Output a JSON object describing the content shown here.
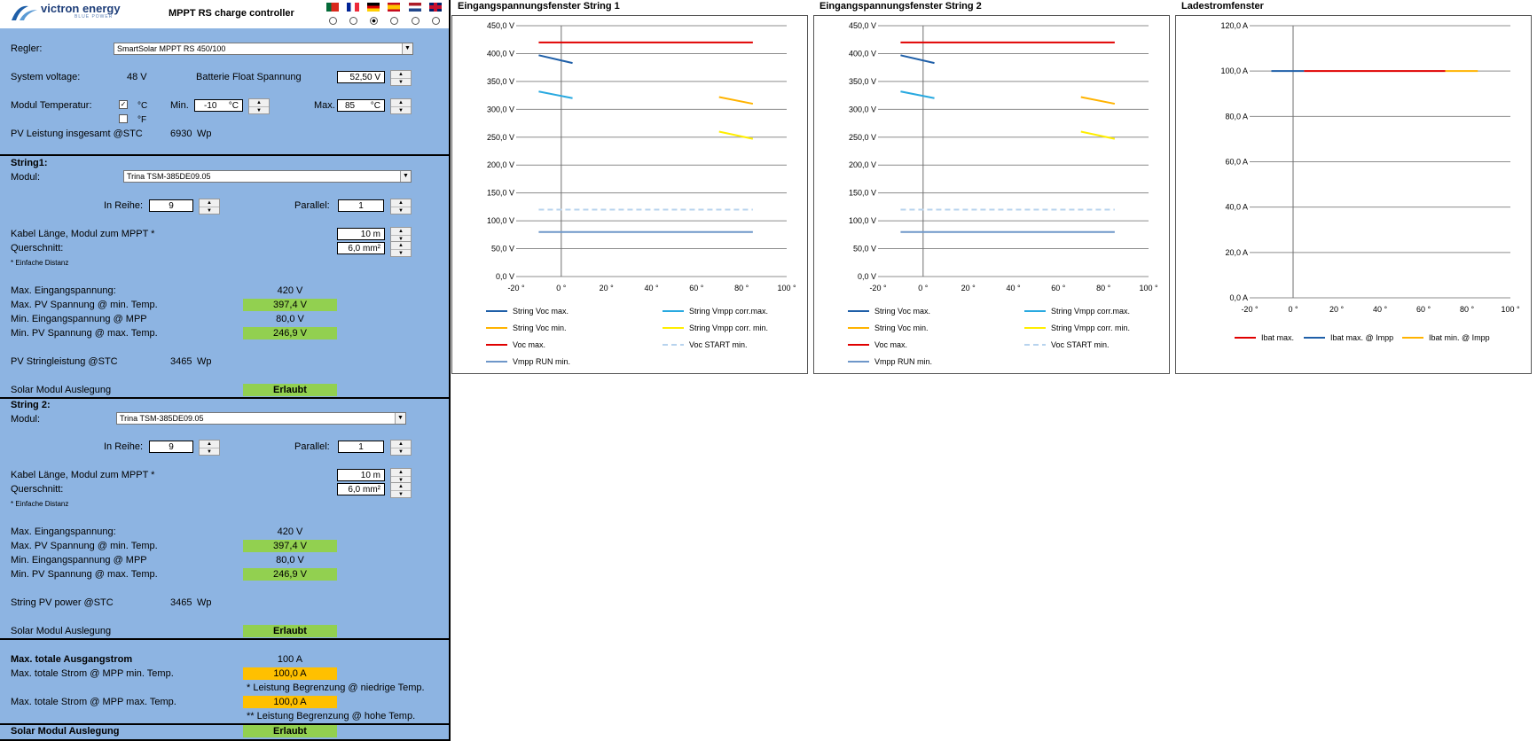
{
  "header": {
    "brand": "victron energy",
    "brand_sub": "BLUE POWER",
    "title": "MPPT RS charge controller",
    "flags": [
      "portugal-flag",
      "france-flag",
      "germany-flag",
      "spain-flag",
      "netherlands-flag",
      "uk-flag"
    ]
  },
  "general": {
    "regler_label": "Regler:",
    "regler_value": "SmartSolar MPPT RS 450/100",
    "system_voltage_label": "System voltage:",
    "system_voltage_value": "48 V",
    "float_label": "Batterie Float Spannung",
    "float_value": "52,50 V",
    "modtemp_label": "Modul Temperatur:",
    "celsius": "°C",
    "fahrenheit": "°F",
    "min_label": "Min.",
    "min_value": "-10",
    "min_unit": "°C",
    "max_label": "Max.",
    "max_value": "85",
    "max_unit": "°C",
    "pv_total_label": "PV Leistung insgesamt @STC",
    "pv_total_value": "6930",
    "pv_total_unit": "Wp"
  },
  "string1": {
    "title": "String1:",
    "modul_label": "Modul:",
    "modul_value": "Trina TSM-385DE09.05",
    "reihe_label": "In Reihe:",
    "reihe_value": "9",
    "parallel_label": "Parallel:",
    "parallel_value": "1",
    "kabel_label": "Kabel Länge, Modul zum MPPT *",
    "kabel_value": "10 m",
    "quer_label": "Querschnitt:",
    "quer_value": "6,0 mm²",
    "note": "* Einfache Distanz",
    "max_in_label": "Max. Eingangspannung:",
    "max_in_value": "420 V",
    "max_pv_label": "Max. PV Spannung @ min. Temp.",
    "max_pv_value": "397,4 V",
    "min_mpp_label": "Min. Eingangspannung @ MPP",
    "min_mpp_value": "80,0 V",
    "min_pv_label": "Min. PV Spannung @ max. Temp.",
    "min_pv_value": "246,9 V",
    "power_label": "PV Stringleistung @STC",
    "power_value": "3465",
    "power_unit": "Wp",
    "ausl_label": "Solar Modul Auslegung",
    "ausl_value": "Erlaubt"
  },
  "string2": {
    "title": "String 2:",
    "modul_label": "Modul:",
    "modul_value": "Trina TSM-385DE09.05",
    "reihe_label": "In Reihe:",
    "reihe_value": "9",
    "parallel_label": "Parallel:",
    "parallel_value": "1",
    "kabel_label": "Kabel Länge, Modul zum MPPT *",
    "kabel_value": "10 m",
    "quer_label": "Querschnitt:",
    "quer_value": "6,0 mm²",
    "note": "* Einfache Distanz",
    "max_in_label": "Max. Eingangspannung:",
    "max_in_value": "420 V",
    "max_pv_label": "Max. PV Spannung @ min. Temp.",
    "max_pv_value": "397,4 V",
    "min_mpp_label": "Min. Eingangspannung @ MPP",
    "min_mpp_value": "80,0 V",
    "min_pv_label": "Min. PV Spannung @ max. Temp.",
    "min_pv_value": "246,9 V",
    "power_label": "String PV power @STC",
    "power_value": "3465",
    "power_unit": "Wp",
    "ausl_label": "Solar Modul Auslegung",
    "ausl_value": "Erlaubt"
  },
  "output": {
    "max_out_label": "Max. totale Ausgangstrom",
    "max_out_value": "100 A",
    "strom_min_label": "Max. totale Strom @ MPP min. Temp.",
    "strom_min_value": "100,0 A",
    "note_low": "* Leistung Begrenzung @ niedrige Temp.",
    "strom_max_label": "Max. totale Strom @ MPP max. Temp.",
    "strom_max_value": "100,0 A",
    "note_high": "** Leistung Begrenzung @ hohe Temp.",
    "ausl_label": "Solar Modul Auslegung",
    "ausl_value": "Erlaubt"
  },
  "chart_data": [
    {
      "type": "line",
      "title": "Eingangspannungsfenster String 1",
      "x_ticks": [
        "-20 °",
        "0 °",
        "20 °",
        "40 °",
        "60 °",
        "80 °",
        "100 °"
      ],
      "y_ticks": [
        "0,0 V",
        "50,0 V",
        "100,0 V",
        "150,0 V",
        "200,0 V",
        "250,0 V",
        "300,0 V",
        "350,0 V",
        "400,0 V",
        "450,0 V"
      ],
      "xlim": [
        -20,
        100
      ],
      "ylim": [
        0,
        450
      ],
      "grid": true,
      "legend": "bottom",
      "series": [
        {
          "name": "String Voc max.",
          "color": "#1f5fa8",
          "dash": false,
          "points": [
            [
              -10,
              397
            ],
            [
              5,
              383
            ]
          ]
        },
        {
          "name": "String Vmpp corr.max.",
          "color": "#29a9e0",
          "dash": false,
          "points": [
            [
              -10,
              332
            ],
            [
              5,
              320
            ]
          ]
        },
        {
          "name": "String Voc min.",
          "color": "#ffb300",
          "dash": false,
          "points": [
            [
              70,
              322
            ],
            [
              85,
              310
            ]
          ]
        },
        {
          "name": "String Vmpp corr. min.",
          "color": "#ffee00",
          "dash": false,
          "points": [
            [
              70,
              260
            ],
            [
              85,
              247
            ]
          ]
        },
        {
          "name": "Voc max.",
          "color": "#e00000",
          "dash": false,
          "points": [
            [
              -10,
              420
            ],
            [
              85,
              420
            ]
          ]
        },
        {
          "name": "Voc START min.",
          "color": "#b7d3ee",
          "dash": true,
          "points": [
            [
              -10,
              120
            ],
            [
              85,
              120
            ]
          ]
        },
        {
          "name": "Vmpp RUN min.",
          "color": "#6e97c9",
          "dash": false,
          "points": [
            [
              -10,
              80
            ],
            [
              85,
              80
            ]
          ]
        }
      ]
    },
    {
      "type": "line",
      "title": "Eingangspannungsfenster String 2",
      "x_ticks": [
        "-20 °",
        "0 °",
        "20 °",
        "40 °",
        "60 °",
        "80 °",
        "100 °"
      ],
      "y_ticks": [
        "0,0 V",
        "50,0 V",
        "100,0 V",
        "150,0 V",
        "200,0 V",
        "250,0 V",
        "300,0 V",
        "350,0 V",
        "400,0 V",
        "450,0 V"
      ],
      "xlim": [
        -20,
        100
      ],
      "ylim": [
        0,
        450
      ],
      "grid": true,
      "legend": "bottom",
      "series": [
        {
          "name": "String Voc max.",
          "color": "#1f5fa8",
          "dash": false,
          "points": [
            [
              -10,
              397
            ],
            [
              5,
              383
            ]
          ]
        },
        {
          "name": "String Vmpp corr.max.",
          "color": "#29a9e0",
          "dash": false,
          "points": [
            [
              -10,
              332
            ],
            [
              5,
              320
            ]
          ]
        },
        {
          "name": "String Voc min.",
          "color": "#ffb300",
          "dash": false,
          "points": [
            [
              70,
              322
            ],
            [
              85,
              310
            ]
          ]
        },
        {
          "name": "String Vmpp corr. min.",
          "color": "#ffee00",
          "dash": false,
          "points": [
            [
              70,
              260
            ],
            [
              85,
              247
            ]
          ]
        },
        {
          "name": "Voc max.",
          "color": "#e00000",
          "dash": false,
          "points": [
            [
              -10,
              420
            ],
            [
              85,
              420
            ]
          ]
        },
        {
          "name": "Voc START min.",
          "color": "#b7d3ee",
          "dash": true,
          "points": [
            [
              -10,
              120
            ],
            [
              85,
              120
            ]
          ]
        },
        {
          "name": "Vmpp RUN min.",
          "color": "#6e97c9",
          "dash": false,
          "points": [
            [
              -10,
              80
            ],
            [
              85,
              80
            ]
          ]
        }
      ]
    },
    {
      "type": "line",
      "title": "Ladestromfenster",
      "x_ticks": [
        "-20 °",
        "0 °",
        "20 °",
        "40 °",
        "60 °",
        "80 °",
        "100 °"
      ],
      "y_ticks": [
        "0,0 A",
        "20,0 A",
        "40,0 A",
        "60,0 A",
        "80,0 A",
        "100,0 A",
        "120,0 A"
      ],
      "xlim": [
        -20,
        100
      ],
      "ylim": [
        0,
        120
      ],
      "grid": true,
      "legend": "bottom",
      "series": [
        {
          "name": "Ibat max.",
          "color": "#e00000",
          "dash": false,
          "points": [
            [
              5,
              100
            ],
            [
              70,
              100
            ]
          ]
        },
        {
          "name": "Ibat max. @ Impp",
          "color": "#1f5fa8",
          "dash": false,
          "points": [
            [
              -10,
              100
            ],
            [
              5,
              100
            ]
          ]
        },
        {
          "name": "Ibat min. @ Impp",
          "color": "#ffb300",
          "dash": false,
          "points": [
            [
              70,
              100
            ],
            [
              85,
              100
            ]
          ]
        }
      ]
    }
  ]
}
